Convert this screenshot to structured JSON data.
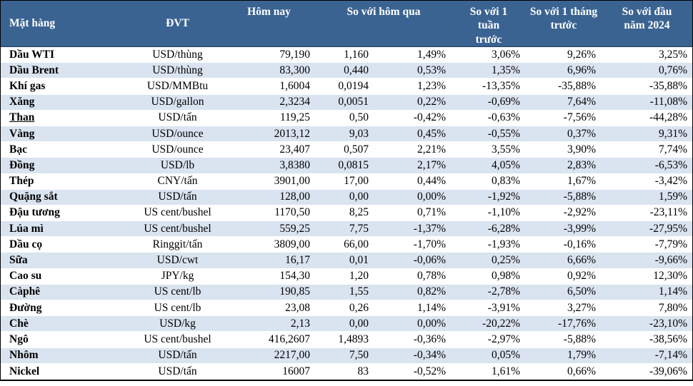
{
  "table": {
    "headers": {
      "col_item": "Mặt hàng",
      "col_unit": "ĐVT",
      "col_today": "Hôm nay",
      "col_vs_yesterday": "So với hôm qua",
      "col_vs_week": "So với 1 tuần trước",
      "col_vs_month": "So với 1 tháng trước",
      "col_vs_ytd": "So với đầu năm 2024"
    },
    "rows": [
      {
        "name": "Dầu WTI",
        "unit": "USD/thùng",
        "today": "79,190",
        "change": "1,160",
        "change_pct": "1,49%",
        "week_pct": "3,06%",
        "month_pct": "9,26%",
        "ytd_pct": "3,25%",
        "underline": false
      },
      {
        "name": "Dầu Brent",
        "unit": "USD/thùng",
        "today": "83,300",
        "change": "0,440",
        "change_pct": "0,53%",
        "week_pct": "1,35%",
        "month_pct": "6,96%",
        "ytd_pct": "0,76%",
        "underline": false
      },
      {
        "name": "Khí gas",
        "unit": "USD/MMBtu",
        "today": "1,6004",
        "change": "0,0194",
        "change_pct": "1,23%",
        "week_pct": "-13,35%",
        "month_pct": "-35,88%",
        "ytd_pct": "-35,88%",
        "underline": false
      },
      {
        "name": "Xăng",
        "unit": "USD/gallon",
        "today": "2,3234",
        "change": "0,0051",
        "change_pct": "0,22%",
        "week_pct": "-0,69%",
        "month_pct": "7,64%",
        "ytd_pct": "-11,08%",
        "underline": false
      },
      {
        "name": "Than",
        "unit": "USD/tấn",
        "today": "119,25",
        "change": "0,50",
        "change_pct": "-0,42%",
        "week_pct": "-0,63%",
        "month_pct": "-7,56%",
        "ytd_pct": "-44,28%",
        "underline": true
      },
      {
        "name": "Vàng",
        "unit": "USD/ounce",
        "today": "2013,12",
        "change": "9,03",
        "change_pct": "0,45%",
        "week_pct": "-0,55%",
        "month_pct": "0,37%",
        "ytd_pct": "9,31%",
        "underline": false
      },
      {
        "name": "Bạc",
        "unit": "USD/ounce",
        "today": "23,407",
        "change": "0,507",
        "change_pct": "2,21%",
        "week_pct": "3,55%",
        "month_pct": "3,90%",
        "ytd_pct": "7,74%",
        "underline": false
      },
      {
        "name": "Đồng",
        "unit": "USD/lb",
        "today": "3,8380",
        "change": "0,0815",
        "change_pct": "2,17%",
        "week_pct": "4,05%",
        "month_pct": "2,83%",
        "ytd_pct": "-6,53%",
        "underline": false
      },
      {
        "name": "Thép",
        "unit": "CNY/tấn",
        "today": "3901,00",
        "change": "17,00",
        "change_pct": "0,44%",
        "week_pct": "0,83%",
        "month_pct": "1,67%",
        "ytd_pct": "-3,42%",
        "underline": false
      },
      {
        "name": "Quặng sắt",
        "unit": "USD/tấn",
        "today": "128,00",
        "change": "0,00",
        "change_pct": "0,00%",
        "week_pct": "-1,92%",
        "month_pct": "-5,88%",
        "ytd_pct": "1,59%",
        "underline": false
      },
      {
        "name": "Đậu tương",
        "unit": "US cent/bushel",
        "today": "1170,50",
        "change": "8,25",
        "change_pct": "0,71%",
        "week_pct": "-1,10%",
        "month_pct": "-2,92%",
        "ytd_pct": "-23,11%",
        "underline": false
      },
      {
        "name": "Lúa mì",
        "unit": "US cent/bushel",
        "today": "559,25",
        "change": "7,75",
        "change_pct": "-1,37%",
        "week_pct": "-6,28%",
        "month_pct": "-3,99%",
        "ytd_pct": "-27,95%",
        "underline": false
      },
      {
        "name": "Dầu cọ",
        "unit": "Ringgit/tấn",
        "today": "3809,00",
        "change": "66,00",
        "change_pct": "-1,70%",
        "week_pct": "-1,93%",
        "month_pct": "-0,16%",
        "ytd_pct": "-7,79%",
        "underline": false
      },
      {
        "name": "Sữa",
        "unit": "USD/cwt",
        "today": "16,17",
        "change": "0,01",
        "change_pct": "-0,06%",
        "week_pct": "0,25%",
        "month_pct": "6,66%",
        "ytd_pct": "-9,66%",
        "underline": false
      },
      {
        "name": "Cao su",
        "unit": "JPY/kg",
        "today": "154,30",
        "change": "1,20",
        "change_pct": "0,78%",
        "week_pct": "0,98%",
        "month_pct": "0,92%",
        "ytd_pct": "12,30%",
        "underline": false
      },
      {
        "name": "Càphê",
        "unit": "US cent/lb",
        "today": "190,85",
        "change": "1,55",
        "change_pct": "0,82%",
        "week_pct": "-2,78%",
        "month_pct": "6,50%",
        "ytd_pct": "1,14%",
        "underline": false
      },
      {
        "name": "Đường",
        "unit": "US cent/lb",
        "today": "23,08",
        "change": "0,26",
        "change_pct": "1,14%",
        "week_pct": "-3,91%",
        "month_pct": "3,27%",
        "ytd_pct": "7,80%",
        "underline": false
      },
      {
        "name": "Chè",
        "unit": "USD/kg",
        "today": "2,13",
        "change": "0,00",
        "change_pct": "0,00%",
        "week_pct": "-20,22%",
        "month_pct": "-17,76%",
        "ytd_pct": "-23,10%",
        "underline": false
      },
      {
        "name": "Ngô",
        "unit": "US cent/bushel",
        "today": "416,2607",
        "change": "1,4893",
        "change_pct": "-0,36%",
        "week_pct": "-2,97%",
        "month_pct": "-5,88%",
        "ytd_pct": "-38,56%",
        "underline": false
      },
      {
        "name": "Nhôm",
        "unit": "USD/tấn",
        "today": "2217,00",
        "change": "7,50",
        "change_pct": "-0,34%",
        "week_pct": "0,05%",
        "month_pct": "1,79%",
        "ytd_pct": "-7,14%",
        "underline": false
      },
      {
        "name": "Nickel",
        "unit": "USD/tấn",
        "today": "16007",
        "change": "83",
        "change_pct": "-0,52%",
        "week_pct": "1,61%",
        "month_pct": "0,66%",
        "ytd_pct": "-39,06%",
        "underline": false
      }
    ]
  },
  "colors": {
    "header_bg": "#3a6391",
    "band_bg": "#dae3f0",
    "header_text": "#ffffff",
    "body_text": "#000000",
    "border": "#000000"
  }
}
